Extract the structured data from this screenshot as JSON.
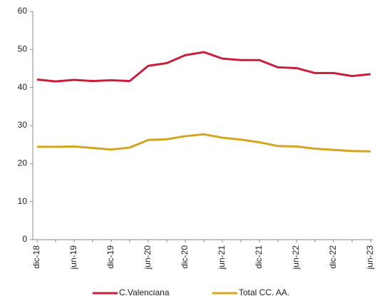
{
  "chart_data": {
    "type": "line",
    "categories": [
      "dic-18",
      null,
      "jun-19",
      null,
      "dic-19",
      null,
      "jun-20",
      null,
      "dic-20",
      null,
      "jun-21",
      null,
      "dic-21",
      null,
      "jun-22",
      null,
      "dic-22",
      null,
      "jun-23"
    ],
    "series": [
      {
        "name": "C.Valenciana",
        "color": "#c8203a",
        "values": [
          42.1,
          41.6,
          42.0,
          41.7,
          41.9,
          41.7,
          45.7,
          46.4,
          48.5,
          49.3,
          47.6,
          47.2,
          47.2,
          45.3,
          45.1,
          43.8,
          43.8,
          43.0,
          43.5
        ]
      },
      {
        "name": "Total CC. AA.",
        "color": "#d4a520",
        "values": [
          24.4,
          24.4,
          24.5,
          24.1,
          23.7,
          24.2,
          26.2,
          26.4,
          27.2,
          27.7,
          26.8,
          26.3,
          25.6,
          24.6,
          24.5,
          23.9,
          23.6,
          23.3,
          23.2
        ]
      }
    ],
    "ylim": [
      0,
      60
    ],
    "yticks": [
      0,
      10,
      20,
      30,
      40,
      50,
      60
    ],
    "grid": false,
    "legend": "bottom"
  }
}
